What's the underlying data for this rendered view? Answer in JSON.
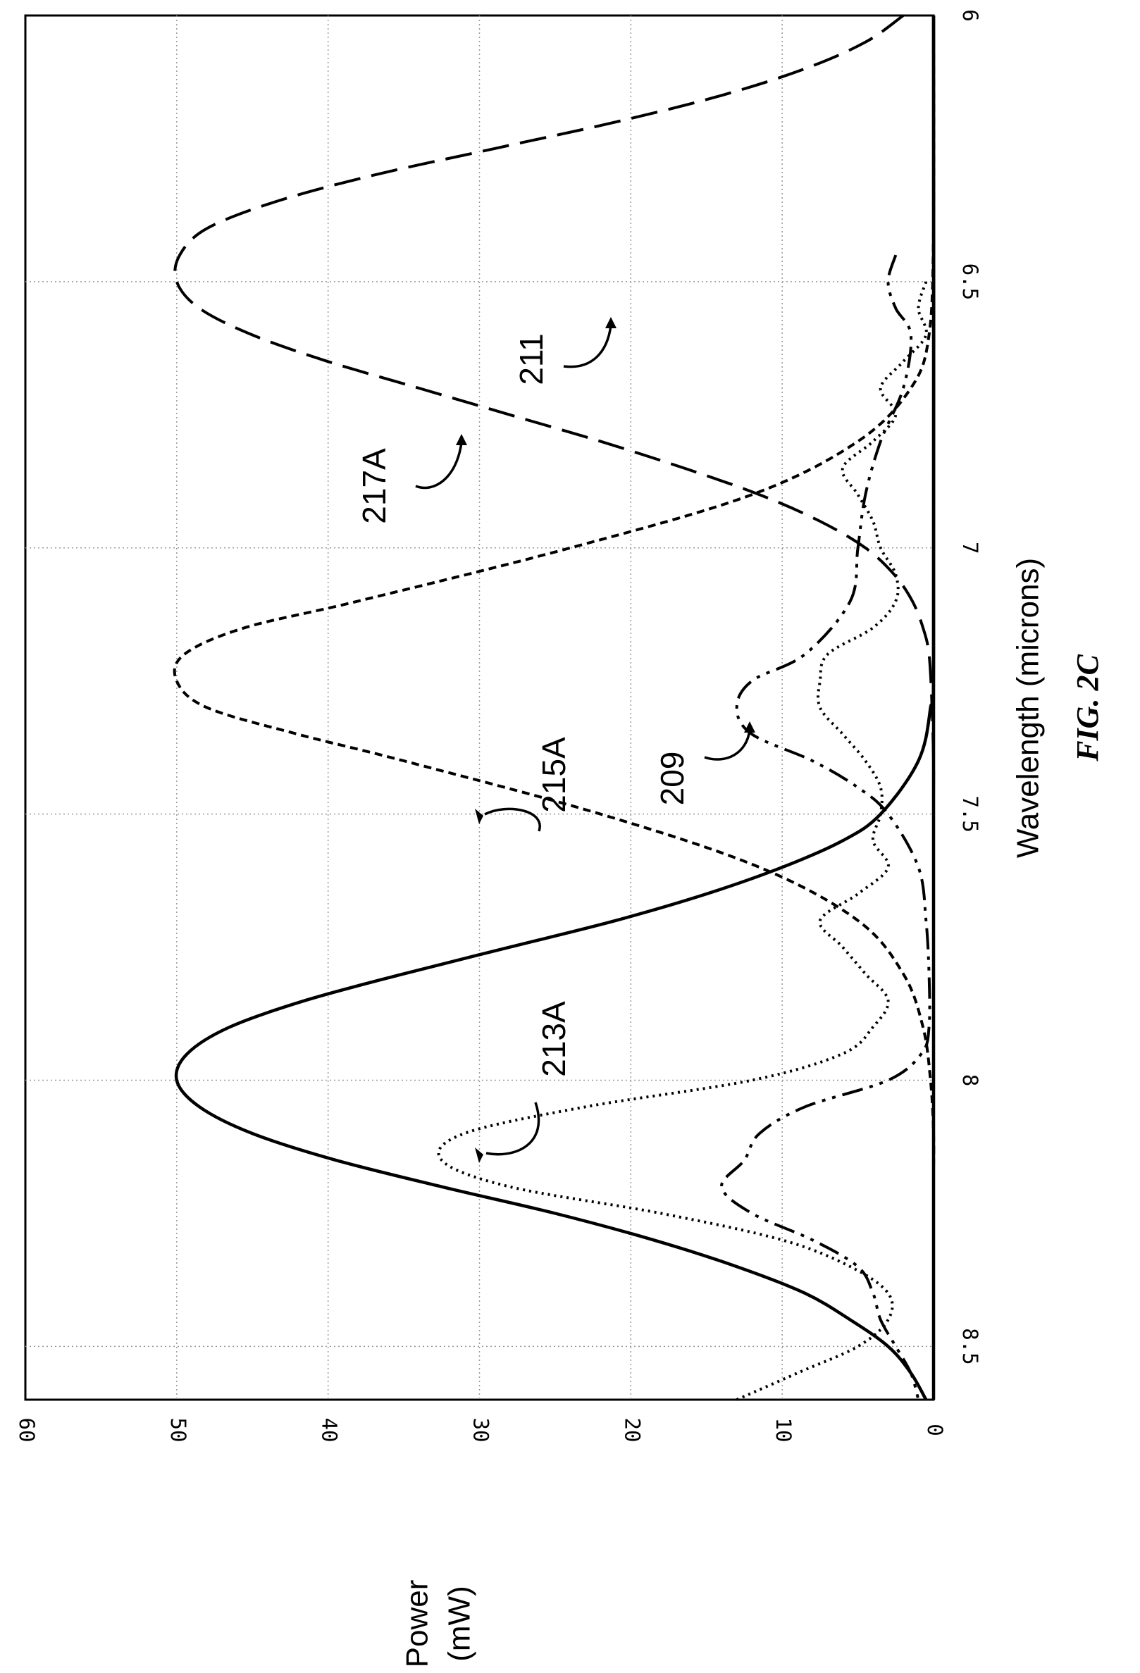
{
  "figure": {
    "title": "FIG. 2C"
  },
  "chart_data": {
    "type": "line",
    "orientation": "rotated 90 degrees counterclockwise (x axis runs top-to-bottom along the right side)",
    "xlabel": "Wavelength (microns)",
    "ylabel": "Power (mW)",
    "xlim": [
      6,
      8.6
    ],
    "ylim": [
      0,
      60
    ],
    "xticks": [
      "6",
      "6.5",
      "7",
      "7.5",
      "8",
      "8.5"
    ],
    "yticks": [
      "0",
      "10",
      "20",
      "30",
      "40",
      "50",
      "60"
    ],
    "grid": true,
    "series": [
      {
        "name": "213A",
        "style": "long-dash",
        "x": [
          6.0,
          6.05,
          6.1,
          6.15,
          6.2,
          6.25,
          6.3,
          6.35,
          6.4,
          6.45,
          6.5,
          6.55,
          6.6,
          6.65,
          6.7,
          6.75,
          6.8,
          6.85,
          6.9,
          6.95,
          7.0,
          7.05,
          7.1,
          7.15,
          7.2,
          7.3,
          7.4,
          7.5,
          8.0,
          8.5,
          8.6
        ],
        "y": [
          2.0,
          4.5,
          8.5,
          14.0,
          21.0,
          29.0,
          37.0,
          43.5,
          48.0,
          49.8,
          50.0,
          48.5,
          45.0,
          40.0,
          34.0,
          28.0,
          22.0,
          16.5,
          11.5,
          7.5,
          4.5,
          2.6,
          1.4,
          0.7,
          0.3,
          0.1,
          0.0,
          0.0,
          0.0,
          0.0,
          0.0
        ]
      },
      {
        "name": "215A",
        "style": "short-dash",
        "x": [
          6.0,
          6.4,
          6.6,
          6.7,
          6.8,
          6.9,
          7.0,
          7.1,
          7.15,
          7.2,
          7.25,
          7.3,
          7.35,
          7.4,
          7.5,
          7.6,
          7.7,
          7.8,
          7.9,
          8.0,
          8.1,
          8.2,
          8.5,
          8.6
        ],
        "y": [
          0.0,
          0.0,
          0.3,
          1.5,
          5.0,
          12.0,
          24.0,
          38.0,
          45.5,
          49.5,
          50.0,
          48.0,
          42.0,
          35.0,
          22.0,
          11.5,
          5.0,
          2.0,
          0.7,
          0.2,
          0.0,
          0.0,
          0.0,
          0.0
        ]
      },
      {
        "name": "217A",
        "style": "solid",
        "x": [
          6.0,
          7.2,
          7.3,
          7.4,
          7.5,
          7.55,
          7.6,
          7.65,
          7.7,
          7.75,
          7.8,
          7.85,
          7.9,
          7.95,
          8.0,
          8.05,
          8.1,
          8.15,
          8.2,
          8.25,
          8.3,
          8.35,
          8.4,
          8.45,
          8.5,
          8.55,
          8.6
        ],
        "y": [
          0.0,
          0.0,
          0.2,
          1.0,
          3.5,
          6.0,
          10.0,
          15.0,
          21.0,
          28.0,
          35.0,
          41.5,
          46.5,
          49.3,
          50.0,
          48.5,
          45.0,
          39.5,
          32.5,
          25.0,
          18.5,
          13.0,
          8.5,
          5.5,
          3.0,
          1.5,
          0.5
        ]
      },
      {
        "name": "209",
        "style": "dash-dot-dot",
        "x": [
          6.45,
          6.5,
          6.55,
          6.6,
          6.7,
          6.8,
          6.9,
          7.0,
          7.1,
          7.2,
          7.25,
          7.3,
          7.35,
          7.4,
          7.45,
          7.5,
          7.6,
          7.7,
          7.8,
          7.9,
          7.95,
          8.0,
          8.05,
          8.1,
          8.15,
          8.2,
          8.25,
          8.3,
          8.35,
          8.4,
          8.45,
          8.5,
          8.55,
          8.6
        ],
        "y": [
          2.5,
          3.0,
          2.5,
          1.5,
          2.0,
          3.5,
          4.5,
          5.0,
          5.5,
          8.5,
          12.0,
          13.0,
          12.0,
          8.0,
          5.0,
          3.0,
          1.0,
          0.5,
          0.3,
          0.3,
          0.8,
          3.0,
          8.5,
          11.5,
          12.5,
          14.0,
          12.0,
          8.0,
          5.0,
          4.0,
          3.5,
          2.5,
          1.5,
          1.0
        ]
      },
      {
        "name": "211",
        "style": "dotted",
        "x": [
          6.5,
          6.55,
          6.6,
          6.65,
          6.7,
          6.75,
          6.8,
          6.85,
          6.9,
          6.95,
          7.0,
          7.05,
          7.1,
          7.15,
          7.2,
          7.25,
          7.3,
          7.35,
          7.4,
          7.45,
          7.5,
          7.55,
          7.6,
          7.65,
          7.7,
          7.75,
          7.8,
          7.85,
          7.9,
          7.95,
          8.0,
          8.05,
          8.1,
          8.15,
          8.2,
          8.25,
          8.3,
          8.35,
          8.4,
          8.45,
          8.5,
          8.55,
          8.6
        ],
        "y": [
          0.5,
          1.0,
          0.5,
          2.0,
          3.5,
          2.5,
          4.0,
          6.0,
          5.0,
          4.0,
          3.5,
          2.5,
          2.5,
          4.0,
          7.0,
          7.5,
          7.5,
          6.0,
          4.5,
          3.5,
          3.5,
          4.0,
          3.0,
          5.0,
          7.5,
          6.0,
          4.5,
          3.0,
          4.0,
          6.0,
          12.0,
          23.0,
          31.0,
          32.5,
          28.0,
          18.0,
          10.0,
          5.5,
          3.0,
          3.0,
          5.0,
          9.0,
          13.0
        ]
      },
      {
        "name": "",
        "style": "solid",
        "x": [
          6.0,
          8.6
        ],
        "y": [
          0.0,
          0.0
        ]
      }
    ],
    "annotations": [
      {
        "label": "213A",
        "x": 6.35,
        "y": 30
      },
      {
        "label": "215A",
        "x": 7.05,
        "y": 30
      },
      {
        "label": "217A",
        "x": 7.8,
        "y": 30
      },
      {
        "label": "209",
        "x": 7.25,
        "y": 12
      },
      {
        "label": "211",
        "x": 8.0,
        "y": 21
      }
    ]
  }
}
